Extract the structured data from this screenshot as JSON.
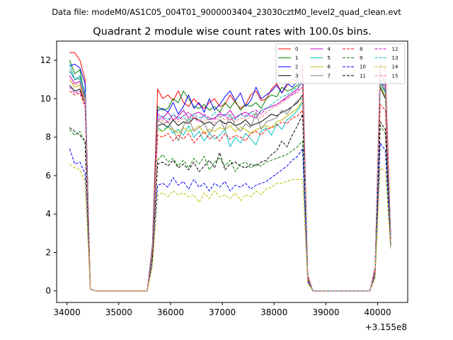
{
  "figure": {
    "suptitle": "Data file: modeM0/AS1C05_004T01_9000003404_23030cztM0_level2_quad_clean.evt"
  },
  "chart_data": {
    "type": "line",
    "title": "Quadrant 2 module wise count rates with 100.0s bins.",
    "xlabel": "",
    "ylabel": "",
    "offset_text": "+3.155e8",
    "xlim": [
      33800,
      40580
    ],
    "ylim": [
      -0.6,
      13.0
    ],
    "xticks": [
      34000,
      35000,
      36000,
      37000,
      38000,
      39000,
      40000
    ],
    "yticks": [
      0,
      2,
      4,
      6,
      8,
      10,
      12
    ],
    "grid": false,
    "legend_location": "upper-right",
    "legend_columns": 4,
    "x": [
      34050,
      34150,
      34250,
      34350,
      34450,
      34550,
      35550,
      35650,
      35750,
      35850,
      35950,
      36050,
      36150,
      36250,
      36350,
      36450,
      36550,
      36650,
      36750,
      36850,
      36950,
      37050,
      37150,
      37250,
      37350,
      37450,
      37550,
      37650,
      37750,
      37850,
      37950,
      38050,
      38150,
      38250,
      38350,
      38450,
      38550,
      38650,
      38750,
      38850,
      39850,
      39950,
      40050,
      40150,
      40250
    ],
    "series": [
      {
        "name": "0",
        "color": "#ff0000",
        "dash": "solid",
        "values": [
          12.4,
          12.4,
          12.0,
          11.0,
          0.1,
          0.0,
          0.0,
          2.4,
          10.5,
          10.0,
          10.2,
          9.9,
          10.4,
          9.8,
          9.6,
          10.0,
          9.7,
          9.5,
          9.8,
          10.0,
          9.6,
          9.7,
          10.2,
          9.8,
          9.5,
          9.7,
          10.2,
          10.4,
          9.9,
          10.0,
          10.5,
          10.8,
          10.3,
          10.7,
          11.0,
          10.9,
          11.8,
          0.8,
          0.0,
          0.0,
          0.0,
          1.2,
          11.8,
          11.5,
          3.0
        ]
      },
      {
        "name": "1",
        "color": "#008000",
        "dash": "solid",
        "values": [
          12.0,
          11.3,
          11.5,
          10.0,
          0.1,
          0.0,
          0.0,
          2.3,
          9.6,
          9.4,
          9.5,
          10.0,
          9.8,
          10.4,
          10.0,
          9.6,
          9.5,
          9.7,
          9.4,
          9.6,
          9.3,
          9.8,
          9.5,
          9.9,
          9.4,
          9.7,
          9.6,
          9.8,
          9.5,
          10.0,
          10.2,
          10.1,
          10.6,
          10.4,
          10.5,
          10.7,
          10.9,
          0.7,
          0.0,
          0.0,
          0.0,
          1.0,
          11.0,
          10.3,
          2.8
        ]
      },
      {
        "name": "2",
        "color": "#0000ff",
        "dash": "solid",
        "values": [
          11.7,
          11.8,
          11.6,
          10.8,
          0.1,
          0.0,
          0.0,
          2.3,
          9.4,
          9.5,
          9.3,
          9.8,
          9.2,
          9.6,
          10.2,
          9.5,
          9.8,
          9.3,
          10.0,
          9.4,
          9.7,
          10.1,
          10.4,
          9.9,
          10.3,
          9.6,
          9.9,
          10.6,
          10.0,
          10.2,
          10.4,
          10.7,
          10.3,
          10.8,
          10.6,
          10.9,
          10.8,
          0.7,
          0.0,
          0.0,
          0.0,
          1.1,
          11.3,
          10.8,
          2.9
        ]
      },
      {
        "name": "3",
        "color": "#000000",
        "dash": "solid",
        "values": [
          10.7,
          10.4,
          10.5,
          9.8,
          0.1,
          0.0,
          0.0,
          2.1,
          8.6,
          8.7,
          8.5,
          8.9,
          8.6,
          8.8,
          8.7,
          9.0,
          8.9,
          8.7,
          8.8,
          8.6,
          8.9,
          8.7,
          8.8,
          8.6,
          8.7,
          8.9,
          8.6,
          8.7,
          8.8,
          9.0,
          9.2,
          9.1,
          9.3,
          9.4,
          9.6,
          9.8,
          10.2,
          0.6,
          0.0,
          0.0,
          0.0,
          1.0,
          10.6,
          10.0,
          2.6
        ]
      },
      {
        "name": "4",
        "color": "#bf00bf",
        "dash": "solid",
        "values": [
          11.2,
          10.8,
          10.9,
          10.0,
          0.1,
          0.0,
          0.0,
          2.2,
          9.2,
          9.0,
          9.3,
          8.9,
          9.1,
          9.4,
          9.0,
          9.2,
          9.3,
          9.1,
          8.9,
          9.0,
          9.2,
          9.1,
          9.4,
          9.0,
          9.2,
          9.3,
          9.1,
          9.0,
          9.4,
          9.5,
          9.6,
          9.7,
          9.9,
          10.1,
          10.3,
          10.5,
          10.9,
          0.7,
          0.0,
          0.0,
          0.0,
          1.1,
          11.4,
          10.7,
          2.8
        ]
      },
      {
        "name": "5",
        "color": "#00bfbf",
        "dash": "solid",
        "values": [
          11.8,
          11.0,
          11.2,
          10.3,
          0.1,
          0.0,
          0.0,
          2.2,
          8.5,
          8.3,
          8.6,
          8.2,
          8.4,
          8.1,
          8.6,
          8.0,
          8.3,
          7.8,
          8.2,
          7.9,
          8.1,
          8.4,
          7.5,
          8.0,
          7.7,
          8.2,
          7.9,
          7.6,
          8.3,
          8.5,
          8.1,
          8.7,
          8.4,
          8.9,
          9.1,
          9.4,
          9.8,
          0.6,
          0.0,
          0.0,
          0.0,
          1.0,
          10.8,
          10.3,
          2.7
        ]
      },
      {
        "name": "6",
        "color": "#bfbf00",
        "dash": "solid",
        "values": [
          11.0,
          10.6,
          10.7,
          9.8,
          0.1,
          0.0,
          0.0,
          2.1,
          8.4,
          8.3,
          8.5,
          8.4,
          8.2,
          8.5,
          8.3,
          8.4,
          8.6,
          8.2,
          8.4,
          8.3,
          8.5,
          8.4,
          8.6,
          8.3,
          8.5,
          8.4,
          8.2,
          8.4,
          8.5,
          8.6,
          8.5,
          8.8,
          8.9,
          9.1,
          9.3,
          9.5,
          9.9,
          0.6,
          0.0,
          0.0,
          0.0,
          1.0,
          10.7,
          10.1,
          2.7
        ]
      },
      {
        "name": "7",
        "color": "#808080",
        "dash": "solid",
        "values": [
          11.5,
          11.0,
          11.1,
          10.2,
          0.1,
          0.0,
          0.0,
          2.2,
          8.9,
          8.7,
          8.8,
          8.4,
          7.8,
          8.6,
          9.0,
          8.3,
          8.5,
          8.7,
          8.2,
          8.6,
          8.9,
          8.4,
          9.2,
          8.6,
          8.3,
          8.7,
          8.5,
          9.3,
          8.4,
          8.8,
          8.9,
          9.0,
          9.4,
          9.2,
          9.6,
          9.9,
          10.0,
          0.7,
          0.0,
          0.0,
          0.0,
          1.0,
          10.9,
          10.4,
          2.7
        ]
      },
      {
        "name": "8",
        "color": "#ff0000",
        "dash": "dash",
        "values": [
          10.4,
          10.2,
          10.3,
          9.6,
          0.1,
          0.0,
          0.0,
          2.0,
          8.1,
          8.0,
          8.2,
          7.8,
          8.1,
          7.9,
          8.2,
          7.7,
          8.0,
          8.3,
          7.9,
          8.1,
          7.8,
          8.2,
          7.9,
          8.1,
          8.0,
          7.8,
          8.2,
          8.3,
          8.1,
          8.4,
          8.5,
          8.6,
          8.8,
          8.7,
          9.0,
          9.1,
          9.4,
          0.6,
          0.0,
          0.0,
          0.0,
          0.9,
          9.7,
          9.4,
          2.5
        ]
      },
      {
        "name": "9",
        "color": "#008000",
        "dash": "dash",
        "values": [
          8.4,
          8.1,
          8.3,
          7.7,
          0.1,
          0.0,
          0.0,
          1.7,
          6.8,
          7.1,
          6.7,
          6.9,
          6.5,
          6.8,
          6.4,
          6.9,
          6.6,
          7.0,
          6.3,
          6.7,
          6.9,
          6.5,
          6.8,
          6.2,
          6.6,
          6.7,
          6.4,
          6.6,
          6.5,
          6.7,
          6.8,
          6.9,
          7.0,
          7.1,
          7.3,
          7.5,
          7.8,
          0.5,
          0.0,
          0.0,
          0.0,
          0.8,
          8.6,
          8.2,
          2.4
        ]
      },
      {
        "name": "10",
        "color": "#0000ff",
        "dash": "dash",
        "values": [
          7.4,
          6.6,
          6.7,
          6.1,
          0.1,
          0.0,
          0.0,
          1.4,
          5.5,
          5.6,
          5.4,
          5.9,
          5.5,
          5.7,
          5.3,
          5.8,
          5.4,
          5.6,
          5.2,
          5.6,
          5.4,
          5.7,
          5.2,
          5.5,
          5.4,
          5.6,
          5.3,
          5.5,
          5.6,
          5.7,
          5.9,
          6.1,
          6.3,
          6.5,
          6.8,
          7.0,
          7.4,
          0.5,
          0.0,
          0.0,
          0.0,
          0.8,
          7.7,
          7.3,
          2.3
        ]
      },
      {
        "name": "11",
        "color": "#000000",
        "dash": "dash",
        "values": [
          8.5,
          8.3,
          8.1,
          7.8,
          0.1,
          0.0,
          0.0,
          1.7,
          6.6,
          6.7,
          6.5,
          6.8,
          6.4,
          6.6,
          6.3,
          6.7,
          6.2,
          6.5,
          6.8,
          6.4,
          7.2,
          6.3,
          6.6,
          6.7,
          6.5,
          6.4,
          6.6,
          6.5,
          6.7,
          6.8,
          7.1,
          7.3,
          7.8,
          7.5,
          8.1,
          8.6,
          9.2,
          0.6,
          0.0,
          0.0,
          0.0,
          0.8,
          8.8,
          8.4,
          2.4
        ]
      },
      {
        "name": "12",
        "color": "#bf00bf",
        "dash": "dash",
        "values": [
          10.6,
          10.3,
          10.4,
          9.7,
          0.1,
          0.0,
          0.0,
          2.1,
          8.9,
          9.0,
          8.8,
          9.2,
          8.9,
          9.1,
          9.3,
          9.0,
          8.8,
          9.2,
          9.0,
          8.9,
          9.3,
          9.1,
          8.9,
          9.0,
          9.2,
          9.1,
          9.3,
          9.4,
          9.2,
          9.5,
          9.6,
          9.7,
          9.9,
          10.0,
          10.2,
          10.4,
          10.6,
          0.6,
          0.0,
          0.0,
          0.0,
          1.0,
          11.0,
          10.5,
          2.7
        ]
      },
      {
        "name": "13",
        "color": "#00bfbf",
        "dash": "dash",
        "values": [
          11.4,
          11.0,
          11.0,
          10.1,
          0.1,
          0.0,
          0.0,
          2.2,
          9.0,
          9.1,
          8.9,
          9.2,
          9.0,
          9.1,
          8.8,
          9.2,
          9.0,
          9.1,
          8.9,
          9.3,
          9.0,
          9.2,
          9.1,
          8.9,
          9.2,
          9.0,
          9.3,
          9.1,
          9.4,
          9.5,
          9.7,
          9.9,
          10.1,
          10.2,
          10.4,
          10.6,
          10.8,
          0.7,
          0.0,
          0.0,
          0.0,
          1.0,
          11.1,
          10.6,
          2.8
        ]
      },
      {
        "name": "14",
        "color": "#bfbf00",
        "dash": "dash",
        "values": [
          6.6,
          6.4,
          6.3,
          5.7,
          0.1,
          0.0,
          0.0,
          1.3,
          5.0,
          5.1,
          4.9,
          5.2,
          5.0,
          5.1,
          4.9,
          5.0,
          4.6,
          5.1,
          4.8,
          5.2,
          4.9,
          5.0,
          4.8,
          5.1,
          4.7,
          5.0,
          4.9,
          5.2,
          5.0,
          5.3,
          5.4,
          5.6,
          5.6,
          5.7,
          5.8,
          5.8,
          5.8,
          0.4,
          0.0,
          0.0,
          0.0,
          0.7,
          6.4,
          6.2,
          2.2
        ]
      },
      {
        "name": "15",
        "color": "#ff8080",
        "dash": "dash",
        "values": [
          11.0,
          10.7,
          10.8,
          9.9,
          0.1,
          0.0,
          0.0,
          2.1,
          8.8,
          8.9,
          8.7,
          9.0,
          8.8,
          9.0,
          8.7,
          9.1,
          8.9,
          8.8,
          9.0,
          8.7,
          9.1,
          8.9,
          9.0,
          8.8,
          9.0,
          8.9,
          9.1,
          9.2,
          9.0,
          9.3,
          9.5,
          9.6,
          9.8,
          10.0,
          10.2,
          10.3,
          10.6,
          0.7,
          0.0,
          0.0,
          0.0,
          1.0,
          11.5,
          11.2,
          2.6
        ]
      }
    ]
  }
}
